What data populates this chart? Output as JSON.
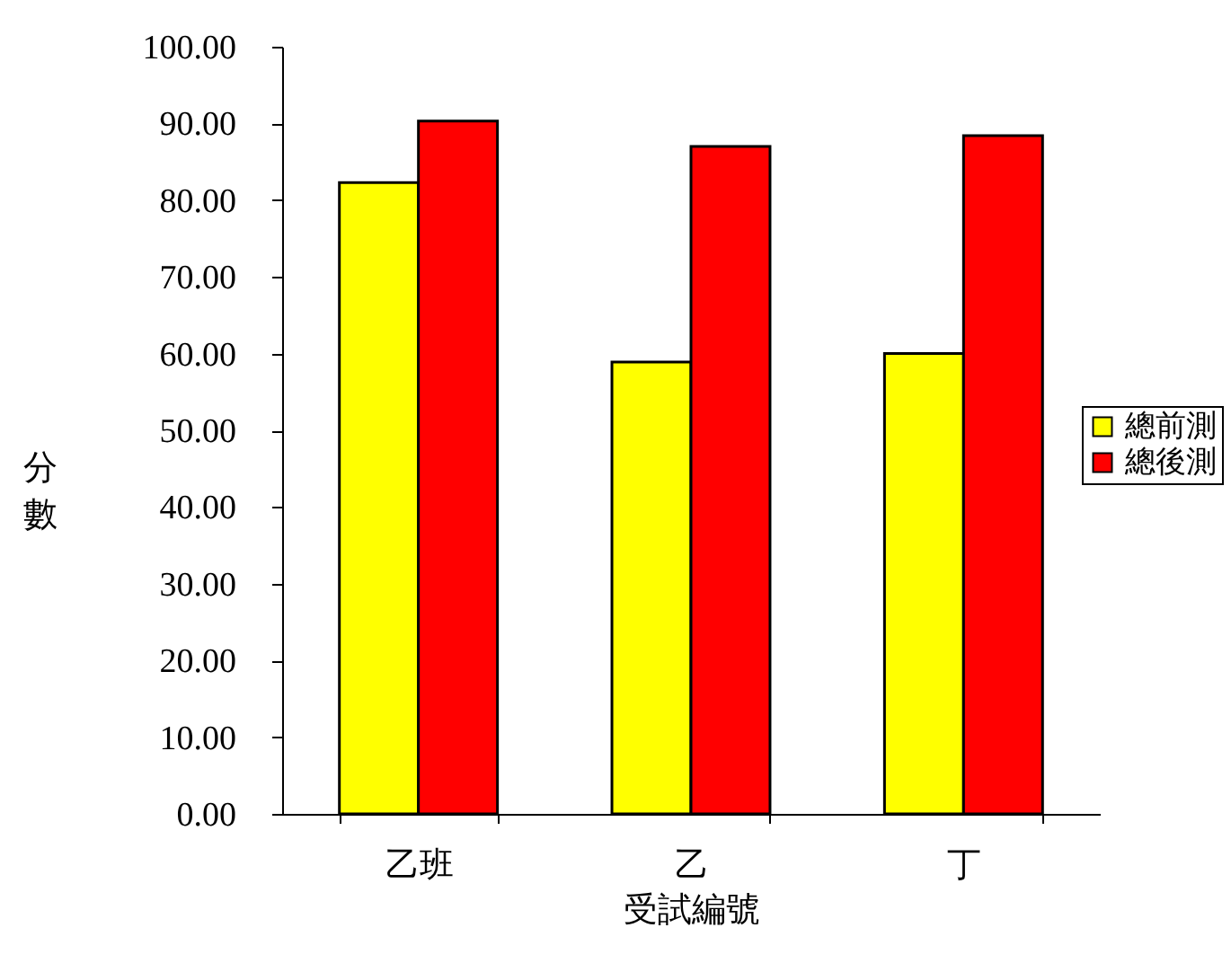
{
  "chart_data": {
    "type": "bar",
    "xlabel": "受試編號",
    "ylabel": "分數",
    "categories": [
      "乙班",
      "乙",
      "丁"
    ],
    "series": [
      {
        "name": "總前測",
        "color": "#ffff00",
        "values": [
          82.3,
          58.9,
          60.0
        ]
      },
      {
        "name": "總後測",
        "color": "#ff0000",
        "values": [
          90.3,
          87.0,
          88.4
        ]
      }
    ],
    "ylim": [
      0,
      100
    ],
    "yticks": [
      {
        "value": 0,
        "label": "0.00"
      },
      {
        "value": 10,
        "label": "10.00"
      },
      {
        "value": 20,
        "label": "20.00"
      },
      {
        "value": 30,
        "label": "30.00"
      },
      {
        "value": 40,
        "label": "40.00"
      },
      {
        "value": 50,
        "label": "50.00"
      },
      {
        "value": 60,
        "label": "60.00"
      },
      {
        "value": 70,
        "label": "70.00"
      },
      {
        "value": 80,
        "label": "80.00"
      },
      {
        "value": 90,
        "label": "90.00"
      },
      {
        "value": 100,
        "label": "100.00"
      }
    ],
    "grid": false,
    "legend": "right"
  }
}
